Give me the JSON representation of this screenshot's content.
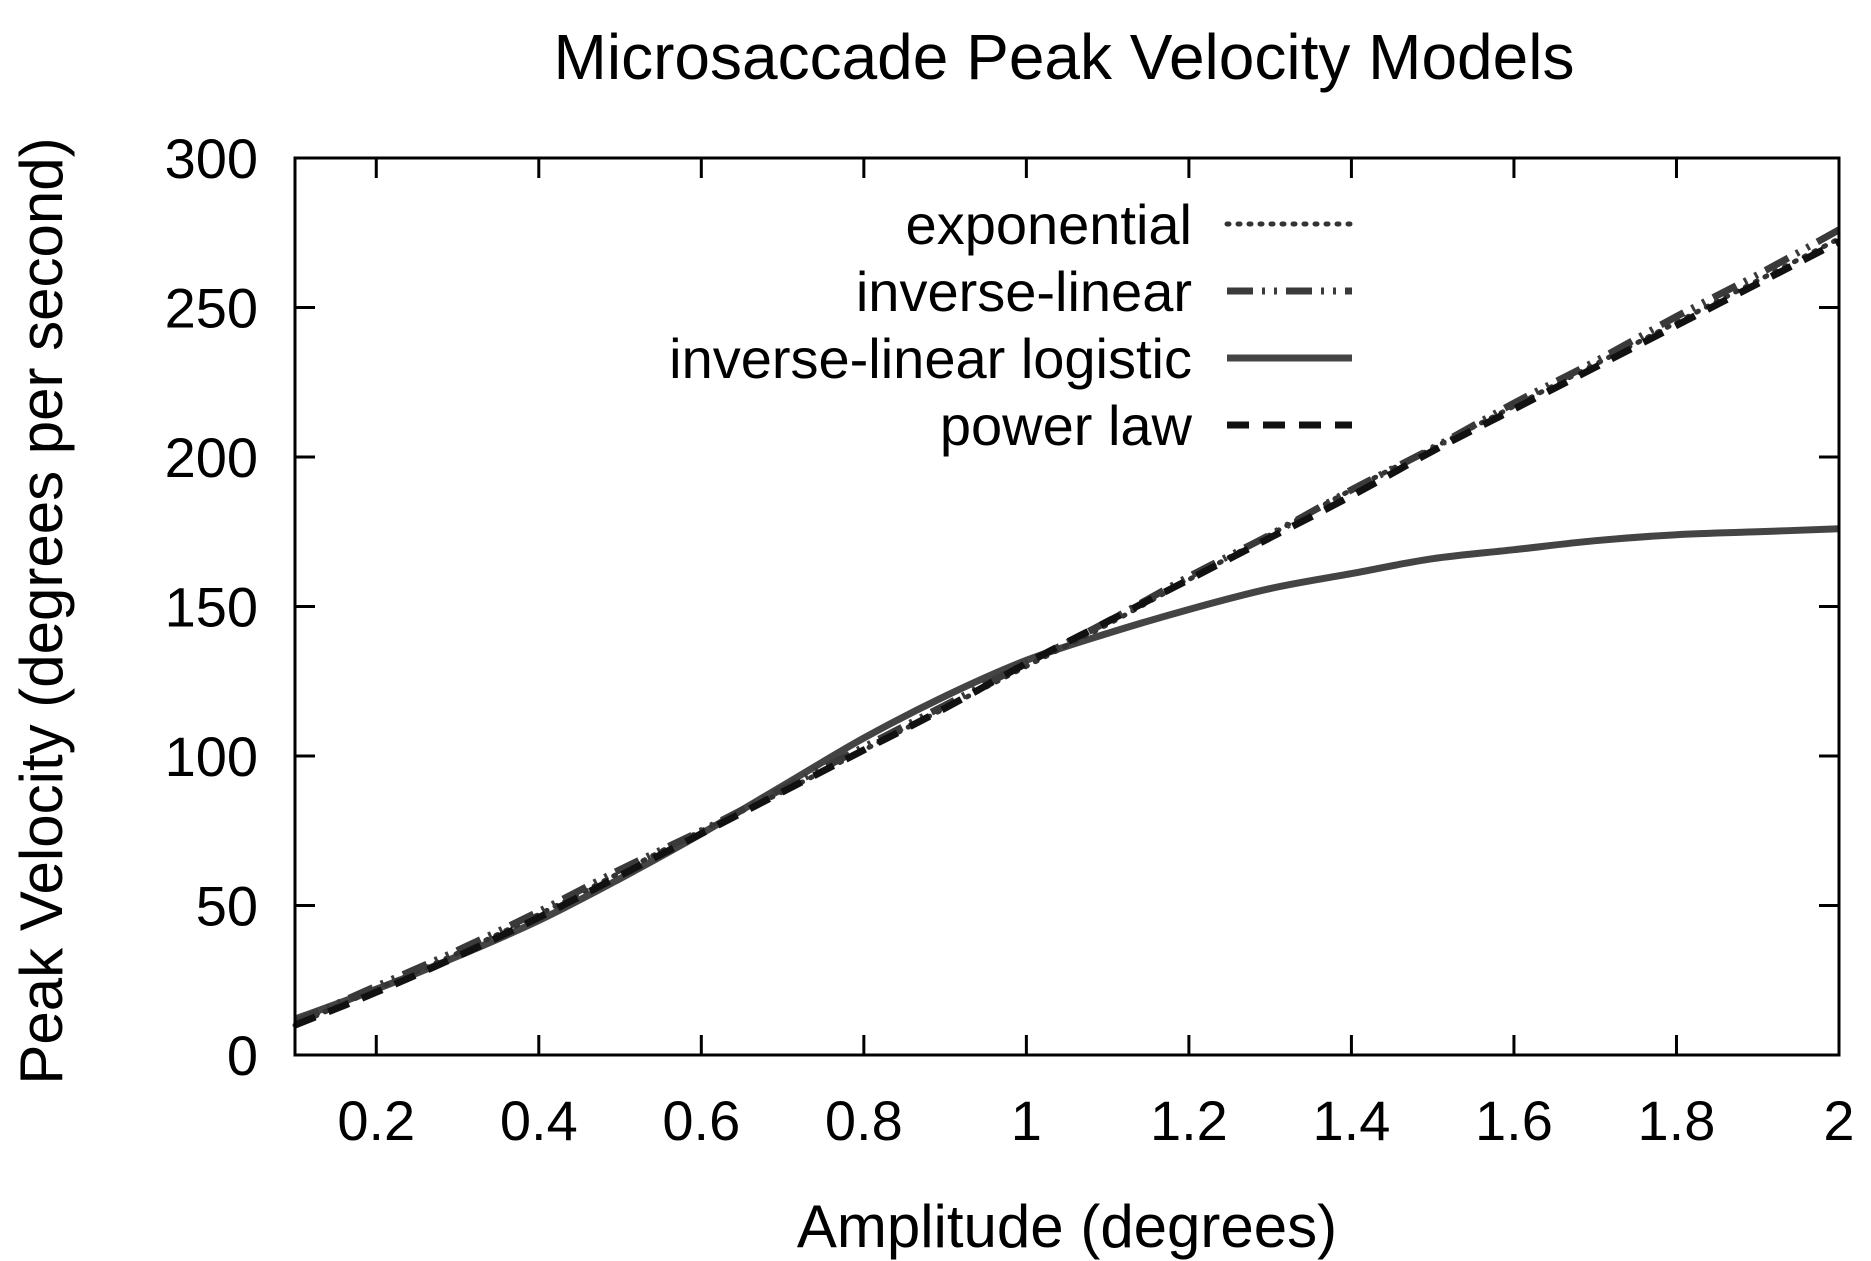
{
  "chart_data": {
    "type": "line",
    "title": "Microsaccade Peak Velocity Models",
    "xlabel": "Amplitude (degrees)",
    "ylabel": "Peak Velocity (degrees per second)",
    "xlim": [
      0.1,
      2.0
    ],
    "ylim": [
      0,
      300
    ],
    "xticks": [
      0.2,
      0.4,
      0.6,
      0.8,
      1.0,
      1.2,
      1.4,
      1.6,
      1.8,
      2.0
    ],
    "xtick_labels": [
      "0.2",
      "0.4",
      "0.6",
      "0.8",
      "1",
      "1.2",
      "1.4",
      "1.6",
      "1.8",
      "2"
    ],
    "yticks": [
      0,
      50,
      100,
      150,
      200,
      250,
      300
    ],
    "ytick_labels": [
      "0",
      "50",
      "100",
      "150",
      "200",
      "250",
      "300"
    ],
    "grid": false,
    "legend_position": "top-right",
    "x": [
      0.1,
      0.2,
      0.3,
      0.4,
      0.5,
      0.6,
      0.7,
      0.8,
      0.9,
      1.0,
      1.1,
      1.2,
      1.3,
      1.4,
      1.5,
      1.6,
      1.7,
      1.8,
      1.9,
      2.0
    ],
    "series": [
      {
        "name": "exponential",
        "style": "dotted",
        "color": "#333333",
        "values": [
          10,
          22,
          34,
          47,
          61,
          75,
          88,
          102,
          116,
          130,
          144,
          159,
          174,
          189,
          203,
          217,
          231,
          245,
          259,
          273
        ]
      },
      {
        "name": "inverse-linear",
        "style": "dash-dot-dot",
        "color": "#3a3a3a",
        "values": [
          11,
          23,
          35,
          48,
          62,
          75,
          89,
          103,
          117,
          131,
          145,
          160,
          174,
          189,
          203,
          218,
          232,
          247,
          261,
          276
        ]
      },
      {
        "name": "inverse-linear logistic",
        "style": "solid",
        "color": "#444444",
        "values": [
          12,
          22,
          33,
          45,
          59,
          74,
          90,
          106,
          120,
          132,
          141,
          149,
          156,
          161,
          166,
          169,
          172,
          174,
          175,
          176
        ]
      },
      {
        "name": "power law",
        "style": "dashed",
        "color": "#111111",
        "values": [
          10,
          21,
          33,
          46,
          60,
          74,
          88,
          102,
          116,
          131,
          145,
          159,
          173,
          187,
          202,
          216,
          230,
          244,
          258,
          272
        ]
      }
    ]
  }
}
